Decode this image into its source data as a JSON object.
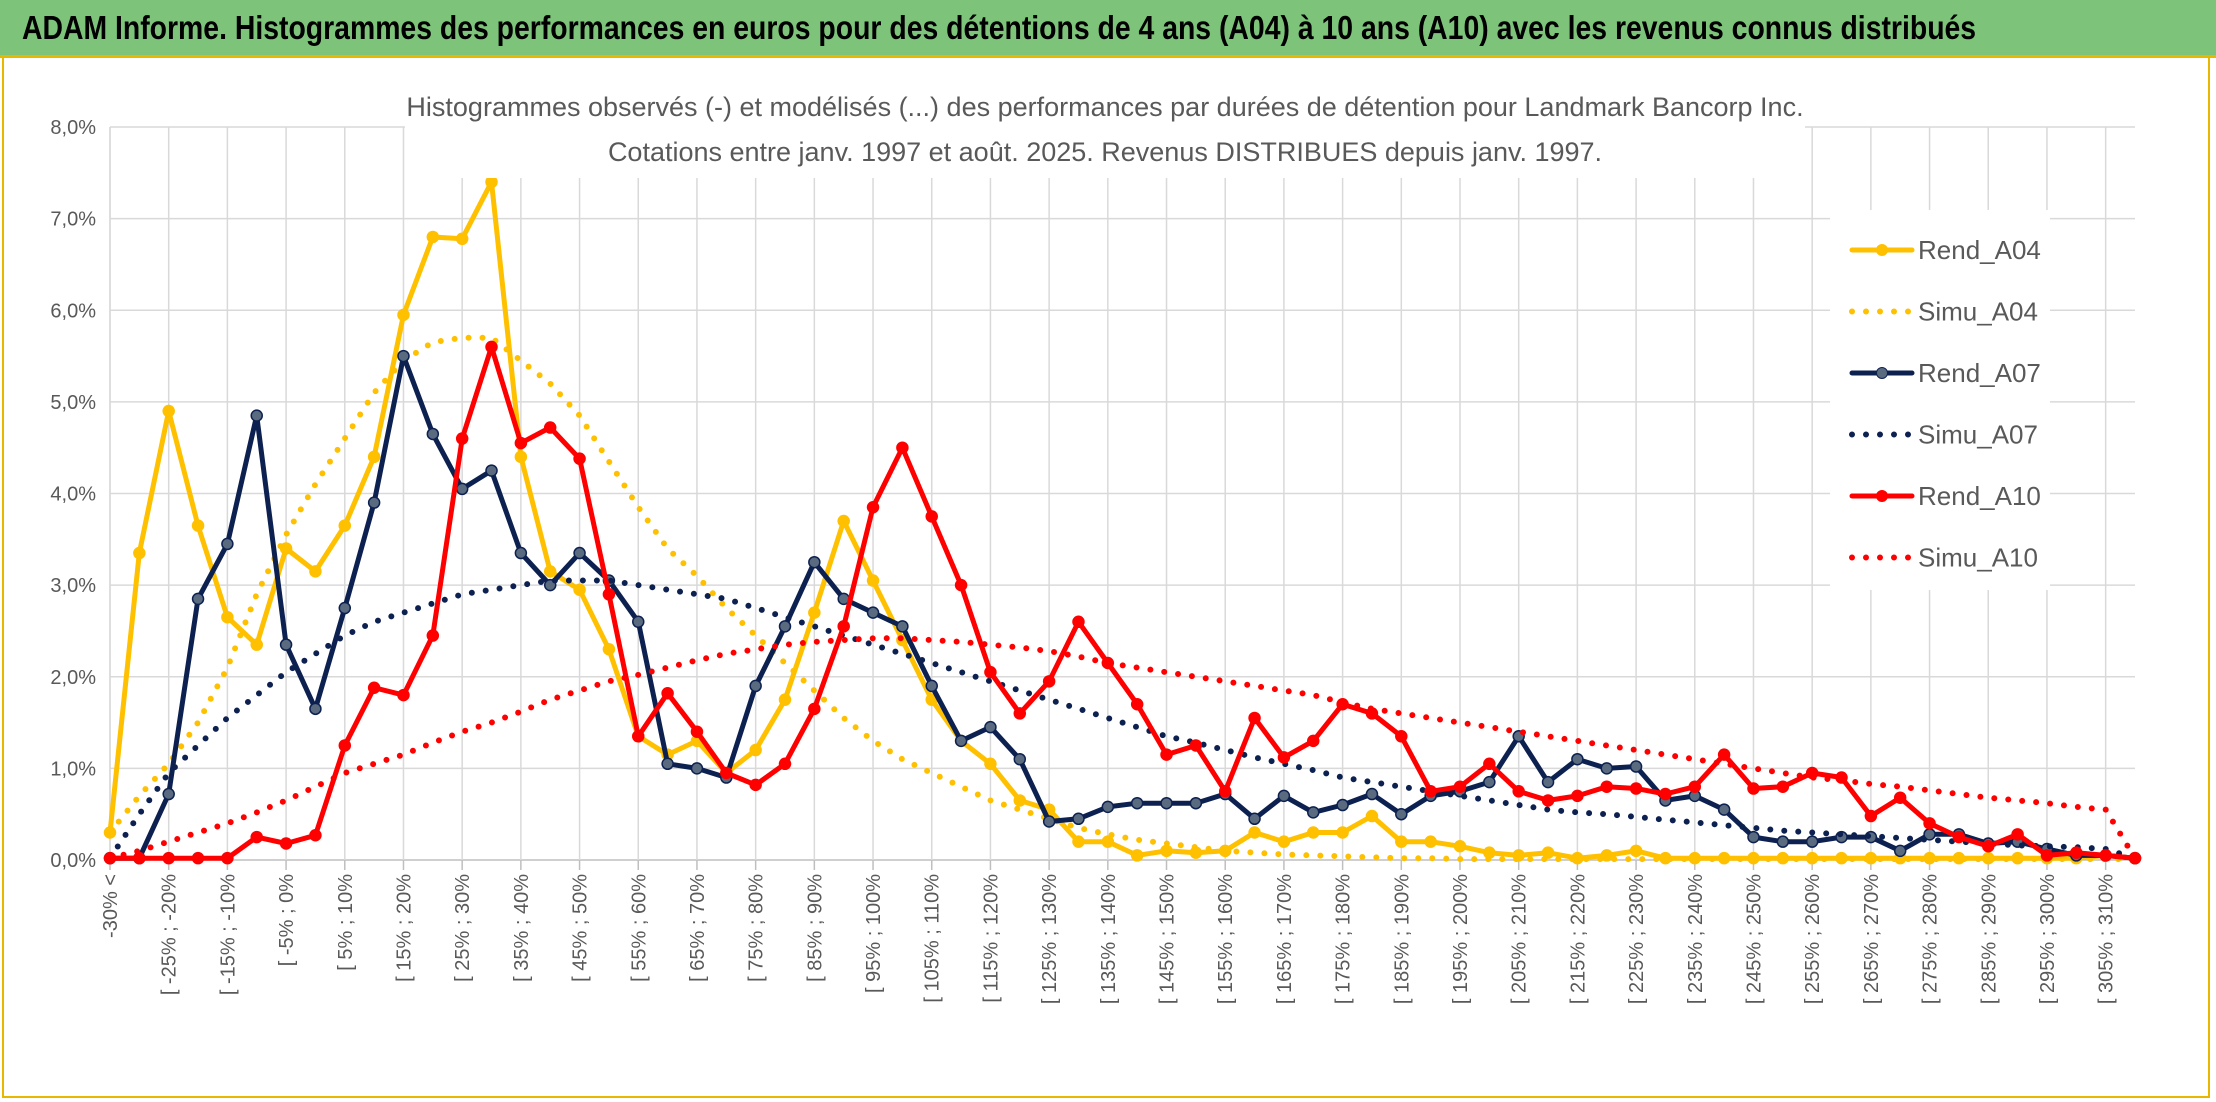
{
  "banner": {
    "title": "ADAM Informe. Histogrammes des performances en euros pour des détentions de 4 ans (A04) à 10 ans (A10) avec les revenus connus distribués"
  },
  "colors": {
    "banner_bg": "#7dc47a",
    "border_accent": "#e8b800",
    "A04": "#ffc000",
    "A07": "#0d2151",
    "A10": "#ff0000"
  },
  "chart_data": {
    "type": "line",
    "title": "Histogrammes observés (-) et modélisés (...) des performances par durées de détention pour Landmark Bancorp Inc.",
    "subtitle": "Cotations entre janv. 1997 et août. 2025. Revenus DISTRIBUES depuis janv. 1997.",
    "xlabel": "",
    "ylabel": "",
    "y_ticks": [
      "0,0%",
      "1,0%",
      "2,0%",
      "3,0%",
      "4,0%",
      "5,0%",
      "6,0%",
      "7,0%",
      "8,0%"
    ],
    "ylim": [
      0,
      8
    ],
    "y_unit": "%",
    "grid": true,
    "legend_position": "right",
    "categories": [
      "-30% <",
      "[ -30% ; -25%",
      "[ -25% ; -20%",
      "[ -20% ; -15%",
      "[ -15% ; -10%",
      "[ -10% ; -5%",
      "[ -5% ; 0%",
      "[ 0% ; 5%",
      "[ 5% ; 10%",
      "[ 10% ; 15%",
      "[ 15% ; 20%",
      "[ 20% ; 25%",
      "[ 25% ; 30%",
      "[ 30% ; 35%",
      "[ 35% ; 40%",
      "[ 40% ; 45%",
      "[ 45% ; 50%",
      "[ 50% ; 55%",
      "[ 55% ; 60%",
      "[ 60% ; 65%",
      "[ 65% ; 70%",
      "[ 70% ; 75%",
      "[ 75% ; 80%",
      "[ 80% ; 85%",
      "[ 85% ; 90%",
      "[ 90% ; 95%",
      "[ 95% ; 100%",
      "[ 100% ; 105%",
      "[ 105% ; 110%",
      "[ 110% ; 115%",
      "[ 115% ; 120%",
      "[ 120% ; 125%",
      "[ 125% ; 130%",
      "[ 130% ; 135%",
      "[ 135% ; 140%",
      "[ 140% ; 145%",
      "[ 145% ; 150%",
      "[ 150% ; 155%",
      "[ 155% ; 160%",
      "[ 160% ; 165%",
      "[ 165% ; 170%",
      "[ 170% ; 175%",
      "[ 175% ; 180%",
      "[ 180% ; 185%",
      "[ 185% ; 190%",
      "[ 190% ; 195%",
      "[ 195% ; 200%",
      "[ 200% ; 205%",
      "[ 205% ; 210%",
      "[ 210% ; 215%",
      "[ 215% ; 220%",
      "[ 220% ; 225%",
      "[ 225% ; 230%",
      "[ 230% ; 235%",
      "[ 235% ; 240%",
      "[ 240% ; 245%",
      "[ 245% ; 250%",
      "[ 250% ; 255%",
      "[ 255% ; 260%",
      "[ 260% ; 265%",
      "[ 265% ; 270%",
      "[ 270% ; 275%",
      "[ 275% ; 280%",
      "[ 280% ; 285%",
      "[ 285% ; 290%",
      "[ 290% ; 295%",
      "[ 295% ; 300%",
      "[ 300% ; 305%",
      "[ 305% ; 310%",
      "[ 310% ; 315%"
    ],
    "labeled_categories": [
      "-30% <",
      "[ -25% ; -20%",
      "[ -15% ; -10%",
      "[ -5% ; 0%",
      "[ 5% ; 10%",
      "[ 15% ; 20%",
      "[ 25% ; 30%",
      "[ 35% ; 40%",
      "[ 45% ; 50%",
      "[ 55% ; 60%",
      "[ 65% ; 70%",
      "[ 75% ; 80%",
      "[ 85% ; 90%",
      "[ 95% ; 100%",
      "[ 105% ; 110%",
      "[ 115% ; 120%",
      "[ 125% ; 130%",
      "[ 135% ; 140%",
      "[ 145% ; 150%",
      "[ 155% ; 160%",
      "[ 165% ; 170%",
      "[ 175% ; 180%",
      "[ 185% ; 190%",
      "[ 195% ; 200%",
      "[ 205% ; 210%",
      "[ 215% ; 220%",
      "[ 225% ; 230%",
      "[ 235% ; 240%",
      "[ 245% ; 250%",
      "[ 255% ; 260%",
      "[ 265% ; 270%",
      "[ 275% ; 280%",
      "[ 285% ; 290%",
      "[ 295% ; 300%",
      "[ 305% ; 310%"
    ],
    "series": [
      {
        "name": "Rend_A04",
        "style": "solid",
        "color": "#ffc000",
        "values": [
          0.3,
          3.35,
          4.9,
          3.65,
          2.65,
          2.35,
          3.4,
          3.15,
          3.65,
          4.4,
          5.95,
          6.8,
          6.78,
          7.4,
          4.4,
          3.15,
          2.95,
          2.3,
          1.35,
          1.15,
          1.3,
          0.95,
          1.2,
          1.75,
          2.7,
          3.7,
          3.05,
          2.4,
          1.75,
          1.3,
          1.05,
          0.65,
          0.55,
          0.2,
          0.2,
          0.05,
          0.1,
          0.08,
          0.1,
          0.3,
          0.2,
          0.3,
          0.3,
          0.48,
          0.2,
          0.2,
          0.15,
          0.08,
          0.05,
          0.08,
          0.02,
          0.05,
          0.1,
          0.02,
          0.02,
          0.02,
          0.02,
          0.02,
          0.02,
          0.02,
          0.02,
          0.02,
          0.02,
          0.02,
          0.02,
          0.02,
          0.02,
          0.02,
          0.05,
          0.02
        ]
      },
      {
        "name": "Simu_A04",
        "style": "dotted",
        "color": "#ffc000",
        "values": [
          0.3,
          0.7,
          1.05,
          1.5,
          2.1,
          2.9,
          3.55,
          4.1,
          4.6,
          5.1,
          5.45,
          5.65,
          5.7,
          5.7,
          5.45,
          5.2,
          4.85,
          4.35,
          3.85,
          3.4,
          3.1,
          2.75,
          2.45,
          2.15,
          1.85,
          1.55,
          1.3,
          1.1,
          0.95,
          0.8,
          0.65,
          0.55,
          0.45,
          0.35,
          0.28,
          0.22,
          0.18,
          0.14,
          0.1,
          0.08,
          0.06,
          0.05,
          0.04,
          0.03,
          0.02,
          0.02,
          0.01,
          0.01,
          0.01,
          0.01,
          0.01,
          0.01,
          0.01,
          0.01,
          0.01,
          0.01,
          0.01,
          0.01,
          0.01,
          0.01,
          0.01,
          0.01,
          0.01,
          0.01,
          0.01,
          0.01,
          0.01,
          0.01,
          0.01,
          0.01
        ]
      },
      {
        "name": "Rend_A07",
        "style": "solid",
        "color": "#0d2151",
        "values": [
          0.02,
          0.02,
          0.72,
          2.85,
          3.45,
          4.85,
          2.35,
          1.65,
          2.75,
          3.9,
          5.5,
          4.65,
          4.05,
          4.25,
          3.35,
          3.0,
          3.35,
          3.05,
          2.6,
          1.05,
          1.0,
          0.9,
          1.9,
          2.55,
          3.25,
          2.85,
          2.7,
          2.55,
          1.9,
          1.3,
          1.45,
          1.1,
          0.42,
          0.45,
          0.58,
          0.62,
          0.62,
          0.62,
          0.72,
          0.45,
          0.7,
          0.52,
          0.6,
          0.72,
          0.5,
          0.7,
          0.75,
          0.85,
          1.35,
          0.85,
          1.1,
          1.0,
          1.02,
          0.65,
          0.7,
          0.55,
          0.25,
          0.2,
          0.2,
          0.25,
          0.25,
          0.1,
          0.28,
          0.28,
          0.18,
          0.2,
          0.12,
          0.05,
          0.05,
          0.02
        ]
      },
      {
        "name": "Simu_A07",
        "style": "dotted",
        "color": "#0d2151",
        "values": [
          0.02,
          0.5,
          0.95,
          1.25,
          1.55,
          1.8,
          2.05,
          2.25,
          2.45,
          2.6,
          2.7,
          2.8,
          2.9,
          2.95,
          3.0,
          3.05,
          3.05,
          3.05,
          3.0,
          2.95,
          2.9,
          2.85,
          2.75,
          2.65,
          2.55,
          2.45,
          2.35,
          2.25,
          2.15,
          2.05,
          1.95,
          1.85,
          1.75,
          1.65,
          1.55,
          1.45,
          1.35,
          1.28,
          1.2,
          1.12,
          1.05,
          0.98,
          0.9,
          0.85,
          0.8,
          0.75,
          0.7,
          0.65,
          0.6,
          0.55,
          0.52,
          0.5,
          0.47,
          0.44,
          0.41,
          0.38,
          0.35,
          0.32,
          0.3,
          0.28,
          0.26,
          0.24,
          0.22,
          0.2,
          0.18,
          0.16,
          0.15,
          0.14,
          0.12,
          0.02
        ]
      },
      {
        "name": "Rend_A10",
        "style": "solid",
        "color": "#ff0000",
        "values": [
          0.02,
          0.02,
          0.02,
          0.02,
          0.02,
          0.25,
          0.18,
          0.27,
          1.25,
          1.88,
          1.8,
          2.45,
          4.6,
          5.6,
          4.55,
          4.72,
          4.38,
          2.9,
          1.35,
          1.82,
          1.4,
          0.95,
          0.82,
          1.05,
          1.65,
          2.55,
          3.85,
          4.5,
          3.75,
          3.0,
          2.05,
          1.6,
          1.95,
          2.6,
          2.15,
          1.7,
          1.15,
          1.25,
          0.75,
          1.55,
          1.12,
          1.3,
          1.7,
          1.6,
          1.35,
          0.75,
          0.8,
          1.05,
          0.75,
          0.65,
          0.7,
          0.8,
          0.78,
          0.72,
          0.8,
          1.15,
          0.78,
          0.8,
          0.95,
          0.9,
          0.48,
          0.68,
          0.4,
          0.25,
          0.15,
          0.28,
          0.05,
          0.08,
          0.05,
          0.02
        ]
      },
      {
        "name": "Simu_A10",
        "style": "dotted",
        "color": "#ff0000",
        "values": [
          0.02,
          0.1,
          0.2,
          0.3,
          0.4,
          0.52,
          0.65,
          0.8,
          0.95,
          1.05,
          1.15,
          1.28,
          1.4,
          1.5,
          1.62,
          1.75,
          1.85,
          1.95,
          2.02,
          2.1,
          2.18,
          2.25,
          2.3,
          2.35,
          2.38,
          2.4,
          2.42,
          2.42,
          2.4,
          2.38,
          2.35,
          2.32,
          2.28,
          2.22,
          2.15,
          2.1,
          2.05,
          2.0,
          1.95,
          1.9,
          1.85,
          1.8,
          1.72,
          1.65,
          1.6,
          1.55,
          1.5,
          1.45,
          1.4,
          1.35,
          1.3,
          1.25,
          1.2,
          1.15,
          1.1,
          1.05,
          1.0,
          0.95,
          0.9,
          0.87,
          0.83,
          0.8,
          0.76,
          0.72,
          0.68,
          0.65,
          0.62,
          0.58,
          0.55,
          0.02
        ]
      }
    ]
  }
}
